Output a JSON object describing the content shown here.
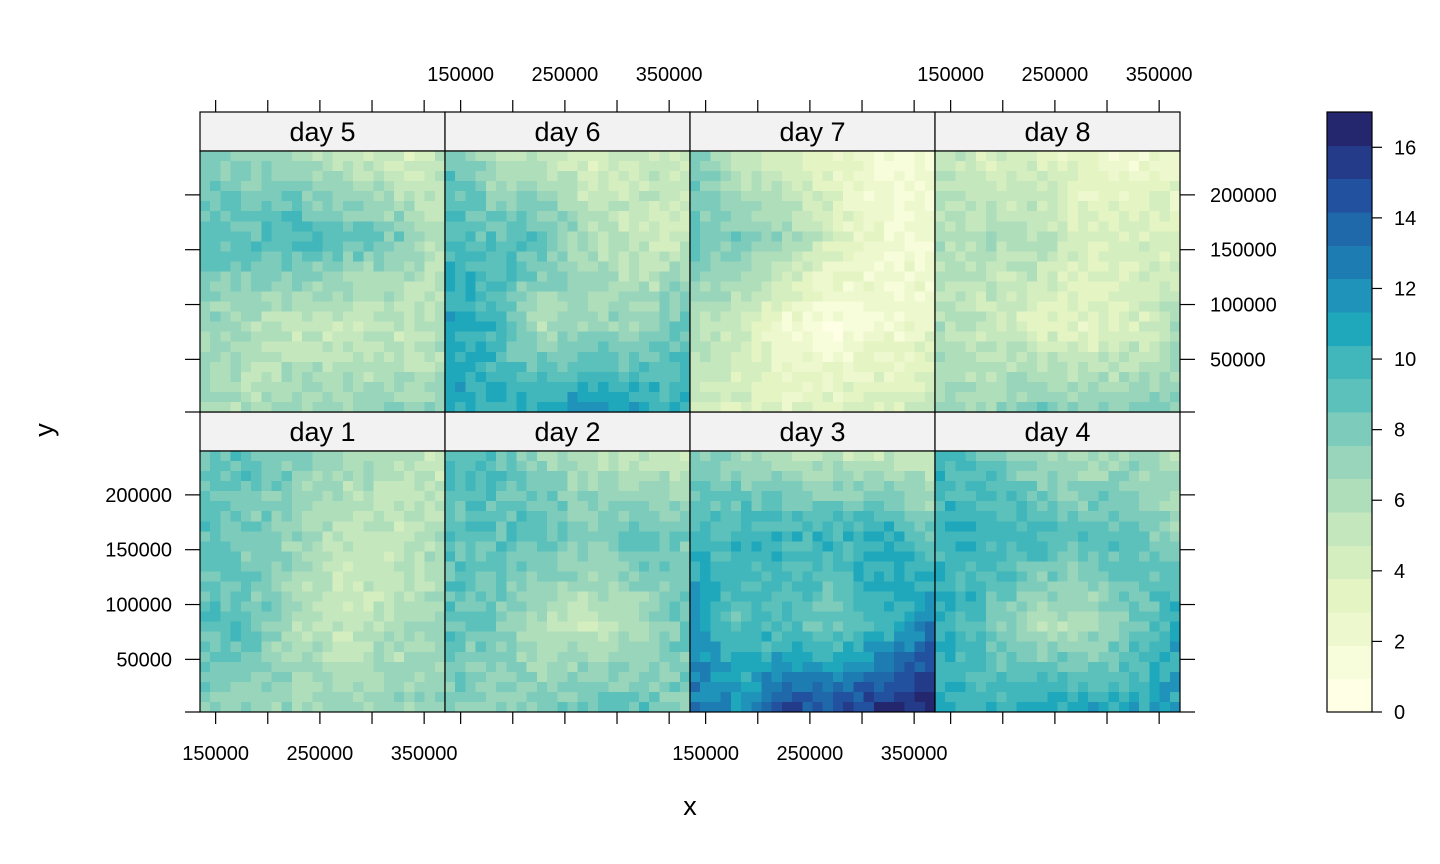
{
  "chart_data": {
    "type": "heatmap",
    "xlabel": "x",
    "ylabel": "y",
    "xlim": [
      135000,
      370000
    ],
    "ylim": [
      2000,
      240000
    ],
    "x_ticks": [
      150000,
      200000,
      250000,
      300000,
      350000
    ],
    "x_tick_labels": [
      "150000",
      "250000",
      "350000"
    ],
    "y_ticks": [
      50000,
      100000,
      150000,
      200000
    ],
    "y_tick_labels": [
      "50000",
      "100000",
      "150000",
      "200000"
    ],
    "legend": {
      "position": "right",
      "min": 0,
      "max": 17,
      "ticks": [
        0,
        2,
        4,
        6,
        8,
        10,
        12,
        14,
        16
      ],
      "tick_labels": [
        "0",
        "2",
        "4",
        "6",
        "8",
        "10",
        "12",
        "14",
        "16"
      ],
      "colors": [
        "#FFFFE5",
        "#F7FCDA",
        "#EEF8CE",
        "#E4F4C3",
        "#D5EEC0",
        "#C4E7BD",
        "#AFDEBB",
        "#98D5BB",
        "#7DCBBB",
        "#5CC0BB",
        "#41B6BB",
        "#1FA8BC",
        "#1F93BA",
        "#1D7DB2",
        "#1F68A9",
        "#21519F",
        "#243B89",
        "#24276E"
      ]
    },
    "grid_spec": {
      "cols": 24,
      "rows": 26,
      "cell_order": "rows listed top (north) to bottom (south), columns west to east"
    },
    "panels": [
      {
        "name": "day 1",
        "label": "day 1",
        "anchors": [
          [
            8,
            9,
            8,
            7,
            6,
            5
          ],
          [
            9,
            8,
            7,
            5,
            5,
            6
          ],
          [
            9,
            9,
            6,
            5,
            6,
            7
          ],
          [
            8,
            7,
            7,
            7,
            7,
            7
          ]
        ]
      },
      {
        "name": "day 2",
        "label": "day 2",
        "anchors": [
          [
            9,
            9,
            7,
            6,
            5,
            5
          ],
          [
            9,
            9,
            9,
            8,
            9,
            8
          ],
          [
            9,
            8,
            6,
            5,
            6,
            9
          ],
          [
            8,
            7,
            8,
            9,
            9,
            7
          ]
        ]
      },
      {
        "name": "day 3",
        "label": "day 3",
        "anchors": [
          [
            8,
            7,
            6,
            5,
            5,
            5
          ],
          [
            10,
            10,
            10,
            10,
            11,
            8
          ],
          [
            12,
            9,
            9,
            8,
            10,
            13
          ],
          [
            13,
            12,
            15,
            15,
            16,
            17
          ]
        ]
      },
      {
        "name": "day 4",
        "label": "day 4",
        "anchors": [
          [
            10,
            9,
            7,
            6,
            7,
            6
          ],
          [
            10,
            10,
            10,
            9,
            9,
            7
          ],
          [
            11,
            9,
            6,
            6,
            8,
            11
          ],
          [
            10,
            10,
            11,
            11,
            11,
            11
          ]
        ]
      },
      {
        "name": "day 5",
        "label": "day 5",
        "anchors": [
          [
            8,
            7,
            6,
            5,
            4,
            5
          ],
          [
            9,
            9,
            10,
            9,
            8,
            5
          ],
          [
            7,
            6,
            5,
            5,
            5,
            6
          ],
          [
            7,
            6,
            7,
            7,
            7,
            7
          ]
        ]
      },
      {
        "name": "day 6",
        "label": "day 6",
        "anchors": [
          [
            9,
            6,
            5,
            4,
            5,
            5
          ],
          [
            10,
            9,
            9,
            6,
            5,
            5
          ],
          [
            11,
            10,
            6,
            7,
            7,
            9
          ],
          [
            11,
            10,
            11,
            12,
            11,
            10
          ]
        ]
      },
      {
        "name": "day 7",
        "label": "day 7",
        "anchors": [
          [
            8,
            5,
            4,
            3,
            2,
            2
          ],
          [
            9,
            8,
            7,
            4,
            2,
            2
          ],
          [
            6,
            5,
            2,
            1,
            2,
            3
          ],
          [
            5,
            4,
            3,
            4,
            4,
            5
          ]
        ]
      },
      {
        "name": "day 8",
        "label": "day 8",
        "anchors": [
          [
            6,
            4,
            4,
            3,
            2,
            3
          ],
          [
            6,
            6,
            6,
            4,
            4,
            4
          ],
          [
            6,
            5,
            4,
            3,
            4,
            6
          ],
          [
            7,
            7,
            8,
            8,
            8,
            8
          ]
        ]
      }
    ]
  }
}
